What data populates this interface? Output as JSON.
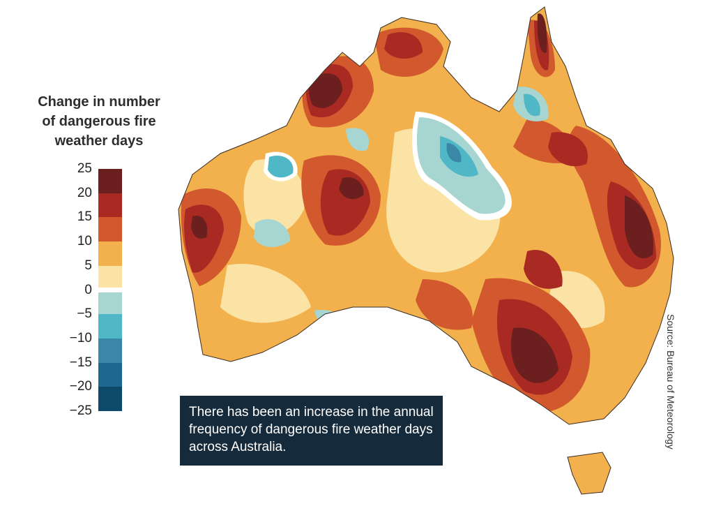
{
  "legend": {
    "title": "Change in number\nof dangerous fire\nweather days",
    "ticks": [
      "25",
      "20",
      "15",
      "10",
      "5",
      "0",
      "−5",
      "−10",
      "−15",
      "−20",
      "−25"
    ],
    "bins": [
      {
        "from": 20,
        "to": 25,
        "color": "#6b1f1f"
      },
      {
        "from": 15,
        "to": 20,
        "color": "#a82a22"
      },
      {
        "from": 10,
        "to": 15,
        "color": "#d1592d"
      },
      {
        "from": 5,
        "to": 10,
        "color": "#f2b14c"
      },
      {
        "from": 0.5,
        "to": 5,
        "color": "#fbe3a6"
      },
      {
        "from": -0.5,
        "to": 0.5,
        "color": "#ffffff"
      },
      {
        "from": -5,
        "to": -0.5,
        "color": "#a7d6d2"
      },
      {
        "from": -10,
        "to": -5,
        "color": "#4fb7c5"
      },
      {
        "from": -15,
        "to": -10,
        "color": "#3a87a8"
      },
      {
        "from": -20,
        "to": -15,
        "color": "#1c6891"
      },
      {
        "from": -25,
        "to": -20,
        "color": "#0b4a6b"
      }
    ]
  },
  "map": {
    "region": "Australia",
    "variable": "change in number of dangerous fire weather days"
  },
  "caption": "There has been an increase in the annual frequency of dangerous fire weather days across Australia.",
  "source": "Source: Bureau of Meteorology"
}
